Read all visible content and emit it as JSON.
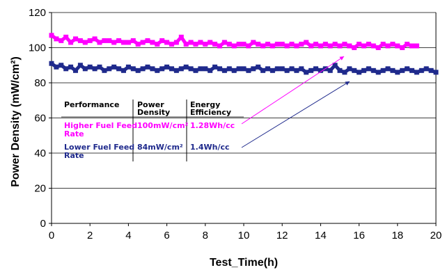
{
  "chart_data": {
    "type": "scatter",
    "title": "",
    "xlabel": "Test_Time(h)",
    "ylabel": "Power Density (mW/cm²)",
    "xlim": [
      0,
      20
    ],
    "ylim": [
      0,
      120
    ],
    "x_ticks": [
      0,
      2,
      4,
      6,
      8,
      10,
      12,
      14,
      16,
      18,
      20
    ],
    "y_ticks": [
      0,
      20,
      40,
      60,
      80,
      100,
      120
    ],
    "grid": "horizontal",
    "legend": "none",
    "series": [
      {
        "name": "Higher Fuel Feed Rate",
        "color": "#ff00ff",
        "marker": "square",
        "x": [
          0.0,
          0.25,
          0.5,
          0.75,
          1.0,
          1.25,
          1.5,
          1.75,
          2.0,
          2.25,
          2.5,
          2.75,
          3.0,
          3.25,
          3.5,
          3.75,
          4.0,
          4.25,
          4.5,
          4.75,
          5.0,
          5.25,
          5.5,
          5.75,
          6.0,
          6.25,
          6.5,
          6.75,
          7.0,
          7.25,
          7.5,
          7.75,
          8.0,
          8.25,
          8.5,
          8.75,
          9.0,
          9.25,
          9.5,
          9.75,
          10.0,
          10.25,
          10.5,
          10.75,
          11.0,
          11.25,
          11.5,
          11.75,
          12.0,
          12.25,
          12.5,
          12.75,
          13.0,
          13.25,
          13.5,
          13.75,
          14.0,
          14.25,
          14.5,
          14.75,
          15.0,
          15.25,
          15.5,
          15.75,
          16.0,
          16.25,
          16.5,
          16.75,
          17.0,
          17.25,
          17.5,
          17.75,
          18.0,
          18.25,
          18.5,
          18.75,
          19.0
        ],
        "y": [
          107,
          105,
          104,
          106,
          103,
          105,
          104,
          103,
          104,
          105,
          103,
          104,
          104,
          103,
          104,
          103,
          103,
          104,
          102,
          103,
          104,
          103,
          102,
          104,
          103,
          102,
          103,
          106,
          102,
          103,
          102,
          103,
          102,
          103,
          102,
          101,
          103,
          102,
          101,
          102,
          102,
          101,
          103,
          102,
          101,
          102,
          101,
          102,
          102,
          101,
          102,
          101,
          102,
          103,
          101,
          102,
          101,
          102,
          101,
          102,
          101,
          102,
          101,
          100,
          102,
          101,
          102,
          101,
          100,
          102,
          101,
          102,
          101,
          100,
          102,
          101,
          101
        ]
      },
      {
        "name": "Lower Fuel Feed Rate",
        "color": "#1f2a8c",
        "marker": "square",
        "x": [
          0.0,
          0.25,
          0.5,
          0.75,
          1.0,
          1.25,
          1.5,
          1.75,
          2.0,
          2.25,
          2.5,
          2.75,
          3.0,
          3.25,
          3.5,
          3.75,
          4.0,
          4.25,
          4.5,
          4.75,
          5.0,
          5.25,
          5.5,
          5.75,
          6.0,
          6.25,
          6.5,
          6.75,
          7.0,
          7.25,
          7.5,
          7.75,
          8.0,
          8.25,
          8.5,
          8.75,
          9.0,
          9.25,
          9.5,
          9.75,
          10.0,
          10.25,
          10.5,
          10.75,
          11.0,
          11.25,
          11.5,
          11.75,
          12.0,
          12.25,
          12.5,
          12.75,
          13.0,
          13.25,
          13.5,
          13.75,
          14.0,
          14.25,
          14.5,
          14.75,
          15.0,
          15.25,
          15.5,
          15.75,
          16.0,
          16.25,
          16.5,
          16.75,
          17.0,
          17.25,
          17.5,
          17.75,
          18.0,
          18.25,
          18.5,
          18.75,
          19.0,
          19.25,
          19.5,
          19.75,
          20.0
        ],
        "y": [
          91,
          89,
          90,
          88,
          89,
          87,
          90,
          88,
          89,
          88,
          89,
          87,
          88,
          89,
          88,
          87,
          89,
          88,
          87,
          88,
          89,
          88,
          87,
          88,
          89,
          88,
          87,
          88,
          89,
          88,
          87,
          88,
          88,
          87,
          89,
          88,
          87,
          88,
          87,
          88,
          88,
          87,
          88,
          89,
          87,
          88,
          87,
          88,
          88,
          87,
          88,
          87,
          88,
          86,
          87,
          88,
          87,
          88,
          87,
          90,
          87,
          86,
          88,
          87,
          86,
          87,
          88,
          87,
          86,
          87,
          88,
          87,
          86,
          87,
          88,
          87,
          86,
          87,
          88,
          87,
          86
        ]
      }
    ],
    "annotation_table": {
      "headers": [
        "Performance",
        "Power\nDensity",
        "Energy\nEfficiency"
      ],
      "rows": [
        {
          "label": "Higher Fuel Feed\nRate",
          "power": "100mW/cm²",
          "efficiency": "1.28Wh/cc",
          "color": "#ff00ff"
        },
        {
          "label": "Lower Fuel Feed\nRate",
          "power": "84mW/cm²",
          "efficiency": "1.4Wh/cc",
          "color": "#1f2a8c"
        }
      ]
    }
  }
}
